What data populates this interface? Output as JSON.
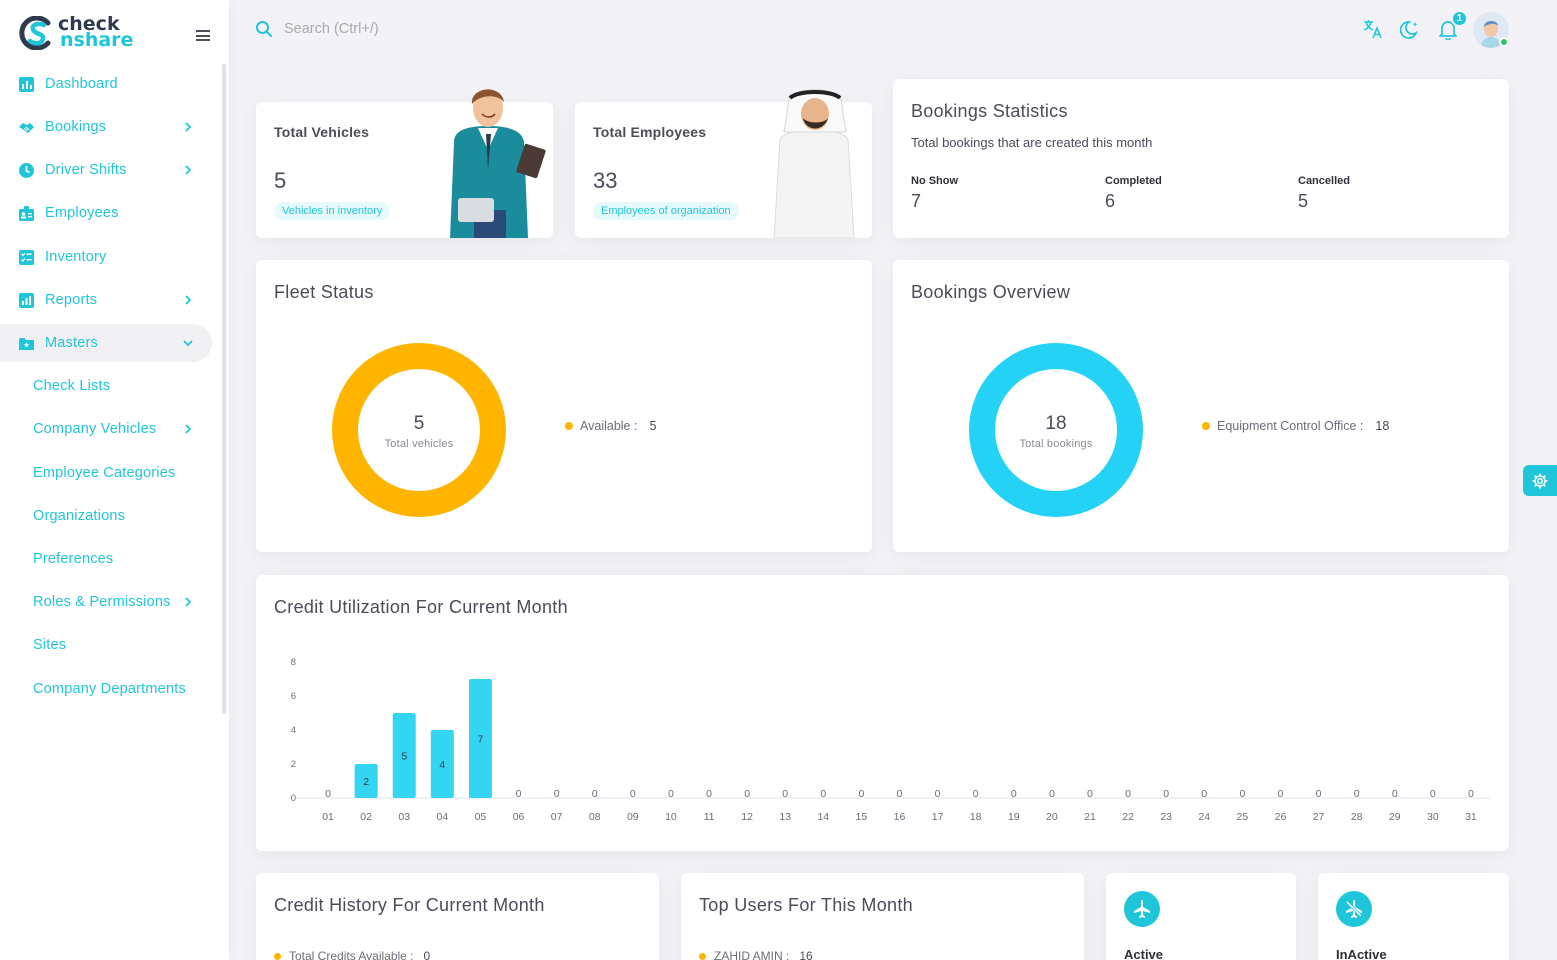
{
  "brand": {
    "line1": "check",
    "line2": "nshare"
  },
  "sidebar": {
    "items": [
      {
        "label": "Dashboard"
      },
      {
        "label": "Bookings"
      },
      {
        "label": "Driver Shifts"
      },
      {
        "label": "Employees"
      },
      {
        "label": "Inventory"
      },
      {
        "label": "Reports"
      },
      {
        "label": "Masters"
      }
    ],
    "masters_children": [
      {
        "label": "Check Lists"
      },
      {
        "label": "Company Vehicles"
      },
      {
        "label": "Employee Categories"
      },
      {
        "label": "Organizations"
      },
      {
        "label": "Preferences"
      },
      {
        "label": "Roles & Permissions"
      },
      {
        "label": "Sites"
      },
      {
        "label": "Company Departments"
      }
    ]
  },
  "topbar": {
    "search_placeholder": "Search (Ctrl+/)",
    "notification_count": "1"
  },
  "stats": {
    "vehicles": {
      "title": "Total Vehicles",
      "value": "5",
      "pill": "Vehicles in inventory"
    },
    "employees": {
      "title": "Total Employees",
      "value": "33",
      "pill": "Employees of organization"
    }
  },
  "bookings_statistics": {
    "title": "Bookings Statistics",
    "subtitle": "Total bookings that are created this month",
    "no_show_label": "No Show",
    "no_show_value": "7",
    "completed_label": "Completed",
    "completed_value": "6",
    "cancelled_label": "Cancelled",
    "cancelled_value": "5"
  },
  "fleet_status": {
    "title": "Fleet Status",
    "center_value": "5",
    "center_label": "Total vehicles",
    "legend_label": "Available :",
    "legend_value": "5"
  },
  "bookings_overview": {
    "title": "Bookings Overview",
    "center_value": "18",
    "center_label": "Total bookings",
    "legend_label": "Equipment Control Office :",
    "legend_value": "18"
  },
  "credit_utilization": {
    "title": "Credit Utilization For Current Month"
  },
  "credit_history": {
    "title": "Credit History For Current Month",
    "legend_label": "Total Credits Available :",
    "legend_value": "0"
  },
  "top_users": {
    "title": "Top Users For This Month",
    "legend_label": "ZAHID AMIN :",
    "legend_value": "16"
  },
  "status_cards": {
    "active_label": "Active",
    "inactive_label": "InActive"
  },
  "colors": {
    "accent": "#1fc6d9",
    "warning": "#ffb400",
    "background": "#f3f2f6"
  },
  "chart_data": [
    {
      "type": "bar",
      "title": "Credit Utilization For Current Month",
      "categories": [
        "01",
        "02",
        "03",
        "04",
        "05",
        "06",
        "07",
        "08",
        "09",
        "10",
        "11",
        "12",
        "13",
        "14",
        "15",
        "16",
        "17",
        "18",
        "19",
        "20",
        "21",
        "22",
        "23",
        "24",
        "25",
        "26",
        "27",
        "28",
        "29",
        "30",
        "31"
      ],
      "values": [
        0,
        2,
        5,
        4,
        7,
        0,
        0,
        0,
        0,
        0,
        0,
        0,
        0,
        0,
        0,
        0,
        0,
        0,
        0,
        0,
        0,
        0,
        0,
        0,
        0,
        0,
        0,
        0,
        0,
        0,
        0
      ],
      "yticks": [
        "0",
        "2",
        "4",
        "6",
        "8"
      ],
      "ylim": [
        0,
        8
      ],
      "color": "#1fc6d9"
    },
    {
      "type": "pie",
      "title": "Fleet Status",
      "categories": [
        "Available"
      ],
      "values": [
        5
      ],
      "color": "#ffb400"
    },
    {
      "type": "pie",
      "title": "Bookings Overview",
      "categories": [
        "Equipment Control Office"
      ],
      "values": [
        18
      ],
      "color": "#1fc6d9"
    }
  ]
}
